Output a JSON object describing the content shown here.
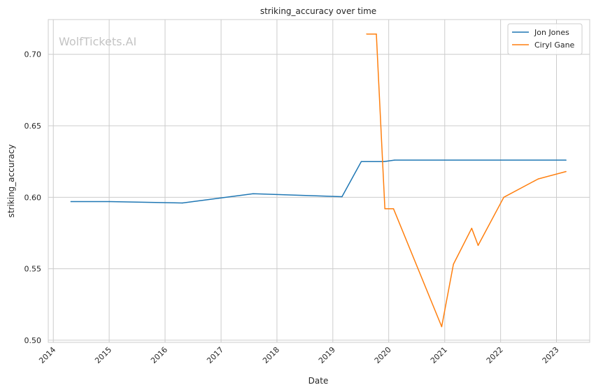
{
  "chart_data": {
    "type": "line",
    "title": "striking_accuracy over time",
    "xlabel": "Date",
    "ylabel": "striking_accuracy",
    "watermark": "WolfTickets.AI",
    "x_ticks": [
      "2014",
      "2015",
      "2016",
      "2017",
      "2018",
      "2019",
      "2020",
      "2021",
      "2022",
      "2023"
    ],
    "y_ticks": [
      "0.50",
      "0.55",
      "0.60",
      "0.65",
      "0.70"
    ],
    "xlim": [
      "2013-11-29",
      "2023-08-06"
    ],
    "ylim": [
      0.4985,
      0.7243
    ],
    "grid": true,
    "legend_position": "top-right",
    "series": [
      {
        "name": "Jon Jones",
        "color": "#1f77b4",
        "points": [
          [
            "2014-04-26",
            0.597
          ],
          [
            "2015-01-03",
            0.597
          ],
          [
            "2016-04-23",
            0.596
          ],
          [
            "2017-07-29",
            0.6025
          ],
          [
            "2019-03-02",
            0.6004
          ],
          [
            "2019-07-06",
            0.625
          ],
          [
            "2019-12-01",
            0.625
          ],
          [
            "2020-02-08",
            0.626
          ],
          [
            "2023-03-04",
            0.626
          ]
        ]
      },
      {
        "name": "Ciryl Gane",
        "color": "#ff7f0e",
        "points": [
          [
            "2019-08-10",
            0.7142
          ],
          [
            "2019-10-12",
            0.7142
          ],
          [
            "2019-12-07",
            0.592
          ],
          [
            "2020-02-01",
            0.592
          ],
          [
            "2020-12-12",
            0.5095
          ],
          [
            "2021-02-27",
            0.5532
          ],
          [
            "2021-06-26",
            0.5783
          ],
          [
            "2021-08-07",
            0.5664
          ],
          [
            "2022-01-22",
            0.6
          ],
          [
            "2022-09-03",
            0.6128
          ],
          [
            "2023-03-04",
            0.618
          ]
        ]
      }
    ]
  }
}
